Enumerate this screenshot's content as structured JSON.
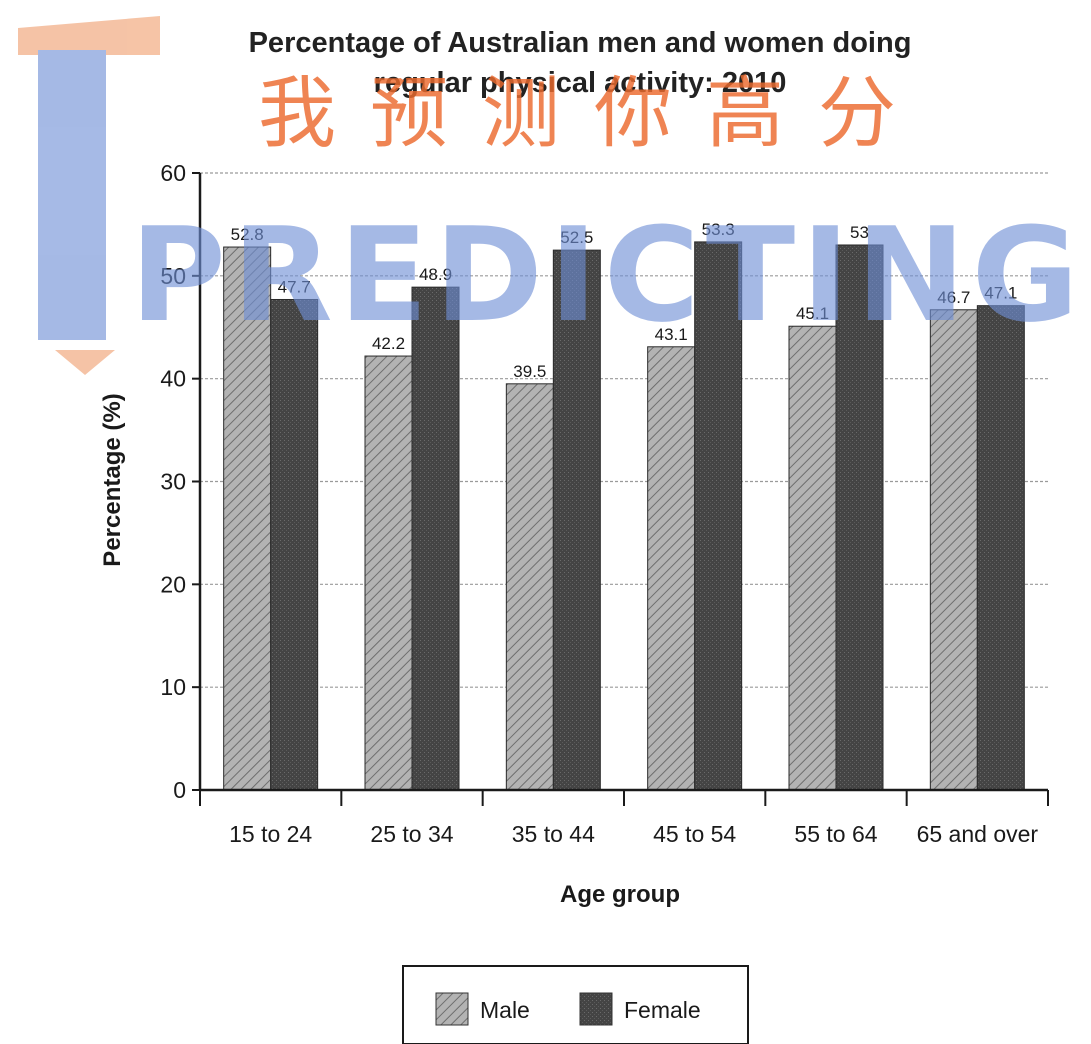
{
  "watermark": {
    "chinese_text": "我预测你高分",
    "english_text": "PREDICTING",
    "orange": "#ec6a2e",
    "blue": "#6f8fd6"
  },
  "chart_data": {
    "type": "bar",
    "title_line1": "Percentage of Australian men and women doing",
    "title_line2": "regular physical activity: 2010",
    "xlabel": "Age group",
    "ylabel": "Percentage (%)",
    "ylim": [
      0,
      60
    ],
    "yticks": [
      "0",
      "10",
      "20",
      "30",
      "40",
      "50",
      "60"
    ],
    "grid": true,
    "legend_position": "bottom-center",
    "categories": [
      "15 to 24",
      "25 to 34",
      "35 to 44",
      "45 to 54",
      "55 to 64",
      "65 and over"
    ],
    "series": [
      {
        "name": "Male",
        "values": [
          52.8,
          42.2,
          39.5,
          43.1,
          45.1,
          46.7
        ],
        "labels": [
          "52.8",
          "42.2",
          "39.5",
          "43.1",
          "45.1",
          "46.7"
        ],
        "color": "#9e9e9e",
        "pattern": "hatched"
      },
      {
        "name": "Female",
        "values": [
          47.7,
          48.9,
          52.5,
          53.3,
          53,
          47.1
        ],
        "labels": [
          "47.7",
          "48.9",
          "52.5",
          "53.3",
          "53",
          "47.1"
        ],
        "color": "#3f3f3f",
        "pattern": "solid-dark"
      }
    ]
  }
}
